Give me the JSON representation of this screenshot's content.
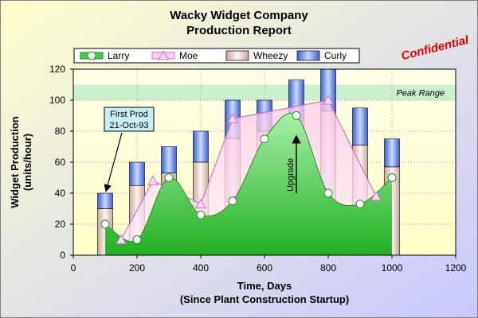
{
  "chart_data": {
    "type": "bar",
    "title": [
      "Wacky Widget Company",
      "Production Report"
    ],
    "watermark": "Confidential",
    "xlabel": [
      "Time, Days",
      "(Since Plant Construction Startup)"
    ],
    "ylabel": [
      "Widget Production",
      "(units/hour)"
    ],
    "xlim": [
      0,
      1200
    ],
    "ylim": [
      0,
      120
    ],
    "x_ticks": [
      0,
      200,
      400,
      600,
      800,
      1000,
      1200
    ],
    "y_ticks": [
      0,
      20,
      40,
      60,
      80,
      100,
      120
    ],
    "grid": true,
    "legend_position": "top",
    "background": {
      "top": "#ffffc0",
      "bottom": "#c0c0ff",
      "plot_fill": "#fffff0"
    },
    "zone": {
      "label": "Peak Range",
      "from": 100,
      "to": 110,
      "color": "#ccf0cc"
    },
    "series": [
      {
        "name": "Larry",
        "type": "area-line",
        "color": "#33bb33",
        "fill": "#44cc44",
        "x": [
          100,
          200,
          300,
          400,
          500,
          600,
          700,
          800,
          900,
          1000
        ],
        "y": [
          20,
          10,
          50,
          26,
          35,
          75,
          90,
          40,
          33,
          50
        ]
      },
      {
        "name": "Moe",
        "type": "area-line",
        "color": "#d070c0",
        "fill": "#ffd0f0",
        "x": [
          150,
          250,
          400,
          500,
          800,
          950
        ],
        "y": [
          10,
          48,
          33,
          88,
          100,
          38
        ]
      },
      {
        "name": "Wheezy",
        "type": "stacked-bar",
        "color": "#e8d0c8",
        "x": [
          100,
          200,
          300,
          400,
          500,
          600,
          700,
          800,
          900,
          1000
        ],
        "y": [
          30,
          45,
          53,
          60,
          75,
          80,
          87,
          93,
          71,
          57
        ]
      },
      {
        "name": "Curly",
        "type": "stacked-bar",
        "color": "#7090e0",
        "x": [
          100,
          200,
          300,
          400,
          500,
          600,
          700,
          800,
          900,
          1000
        ],
        "y": [
          10,
          15,
          17,
          20,
          25,
          20,
          26,
          27,
          24,
          18
        ]
      }
    ],
    "annotations": [
      {
        "kind": "callout",
        "text": [
          "First Prod",
          "21-Oct-93"
        ],
        "target_x": 100,
        "target_y": 42
      },
      {
        "kind": "arrow-label",
        "text": "Upgrade",
        "x": 700,
        "from_y": 40,
        "to_y": 78
      }
    ]
  }
}
